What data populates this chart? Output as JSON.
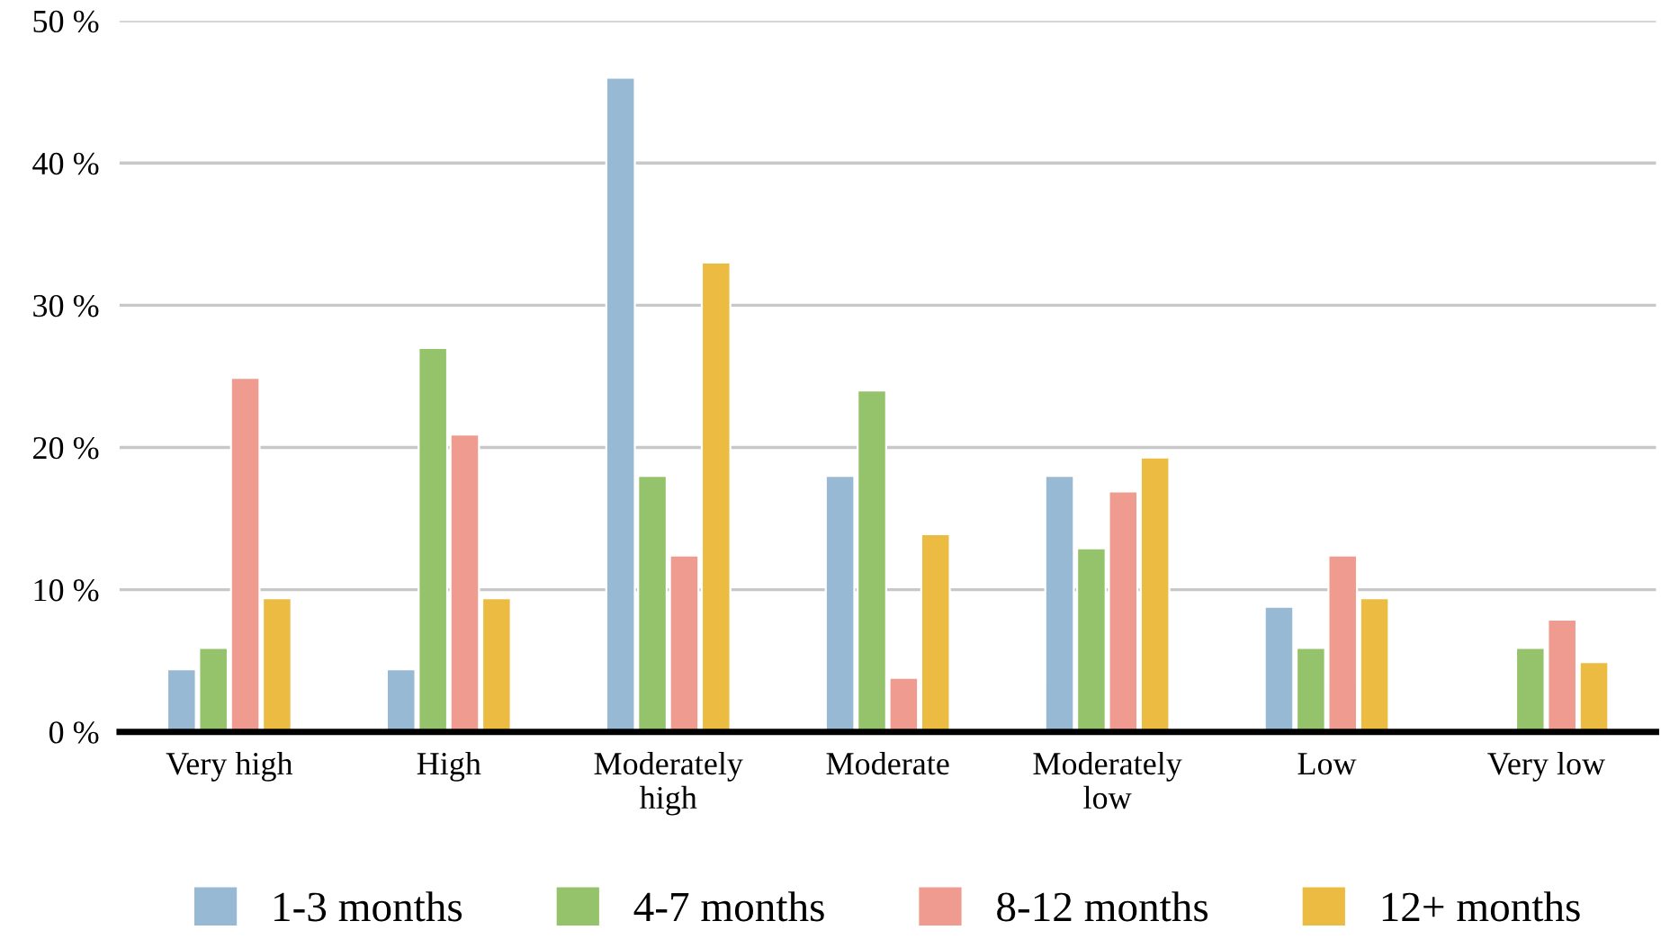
{
  "chart_data": {
    "type": "bar",
    "categories": [
      "Very high",
      "High",
      "Moderately\nhigh",
      "Moderate",
      "Moderately\nlow",
      "Low",
      "Very low"
    ],
    "series": [
      {
        "name": "1-3 months",
        "color": "#97b9d4",
        "values": [
          4.4,
          4.4,
          46,
          18,
          18,
          8.8,
          null
        ]
      },
      {
        "name": "4-7 months",
        "color": "#95c36c",
        "values": [
          5.9,
          27,
          18,
          24,
          12.9,
          5.9,
          5.9
        ]
      },
      {
        "name": "8-12 months",
        "color": "#f09b8f",
        "values": [
          24.9,
          20.9,
          12.4,
          3.8,
          16.9,
          12.4,
          7.9
        ]
      },
      {
        "name": "12+ months",
        "color": "#ecbb41",
        "values": [
          9.4,
          9.4,
          33,
          13.9,
          19.3,
          9.4,
          4.9
        ]
      }
    ],
    "ylim": [
      0,
      50
    ],
    "yticks": [
      {
        "value": 0,
        "label": "0 %"
      },
      {
        "value": 10,
        "label": "10 %"
      },
      {
        "value": 20,
        "label": "20 %"
      },
      {
        "value": 30,
        "label": "30 %"
      },
      {
        "value": 40,
        "label": "40 %"
      },
      {
        "value": 50,
        "label": "50 %"
      }
    ],
    "grid": "y",
    "legend": "bottom"
  }
}
